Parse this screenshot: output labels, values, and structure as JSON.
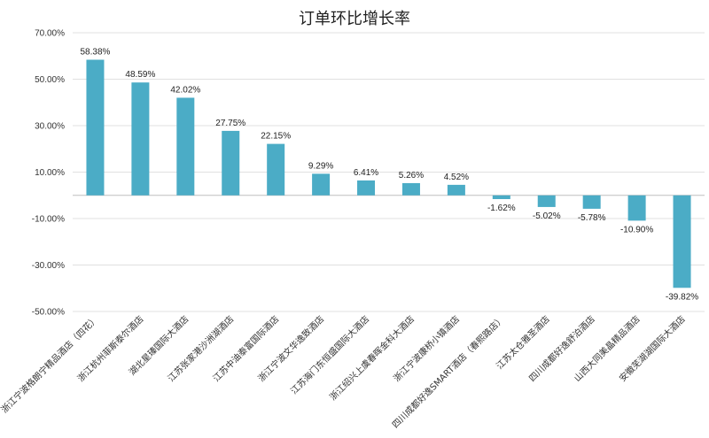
{
  "chart_data": {
    "type": "bar",
    "title": "订单环比增长率",
    "xlabel": "",
    "ylabel": "",
    "ylim": [
      -50,
      70
    ],
    "yticks": [
      70,
      50,
      30,
      10,
      -10,
      -30,
      -50
    ],
    "ytick_labels": [
      "70.00%",
      "50.00%",
      "30.00%",
      "10.00%",
      "-10.00%",
      "-30.00%",
      "-50.00%"
    ],
    "grid": true,
    "legend": "none",
    "bar_color": "#4bacc6",
    "categories": [
      "浙江宁波格朗宁精品酒店（四花）",
      "浙江杭州菲斯泰尔酒店",
      "湖北星瑧国际大酒店",
      "江苏张家港沙洲湖酒店",
      "江苏中油泰富国际酒店",
      "浙江宁波文华逸致酒店",
      "江苏海门东恒盛国际大酒店",
      "浙江绍兴上虞春晖金科大酒店",
      "浙江宁波康桥小镇酒店",
      "四川成都好逸SMART酒店（春熙路店）",
      "江苏太仓雅圣酒店",
      "四川成都好逸舒泊酒店",
      "山西大同美晶精品酒店",
      "安徽芜湖湖国际大酒店"
    ],
    "values": [
      58.38,
      48.59,
      42.02,
      27.75,
      22.15,
      9.29,
      6.41,
      5.26,
      4.52,
      -1.62,
      -5.02,
      -5.78,
      -10.9,
      -39.82
    ],
    "data_labels": [
      "58.38%",
      "48.59%",
      "42.02%",
      "27.75%",
      "22.15%",
      "9.29%",
      "6.41%",
      "5.26%",
      "4.52%",
      "-1.62%",
      "-5.02%",
      "-5.78%",
      "-10.90%",
      "-39.82%"
    ]
  }
}
